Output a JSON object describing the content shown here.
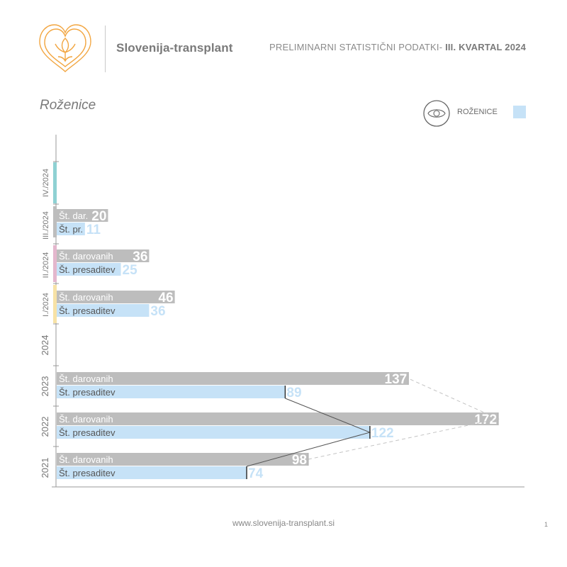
{
  "header": {
    "brand": "Slovenija-transplant",
    "report_title_prefix": "PRELIMINARNI STATISTIČNI PODATKI- ",
    "report_title_period": "III. KVARTAL 2024"
  },
  "section_title": "Roženice",
  "legend": {
    "label": "ROŽENICE",
    "swatch_color": "#c6e2f7",
    "icon": "eye-icon"
  },
  "footer": {
    "url": "www.slovenija-transplant.si",
    "page_number": "1"
  },
  "colors": {
    "donated": "#bdbdbd",
    "transplanted": "#c6e2f7",
    "transplanted_text": "#c6e2f7",
    "q4": "#8fd1d3",
    "q3": "#bdbdbd",
    "q2": "#e4b7cd",
    "q1": "#f7e2a6",
    "logo": "#f2a641"
  },
  "chart_data": {
    "type": "bar",
    "orientation": "horizontal",
    "categories": [
      "IV./2024",
      "III./2024",
      "II./2024",
      "I./2024",
      "2024",
      "2023",
      "2022",
      "2021"
    ],
    "series": [
      {
        "name": "Št. darovanih",
        "short_name": "Št. dar.",
        "values": [
          null,
          20,
          36,
          46,
          null,
          137,
          172,
          98
        ]
      },
      {
        "name": "Št. presaditev",
        "short_name": "Št. pr.",
        "values": [
          null,
          11,
          25,
          36,
          null,
          89,
          122,
          74
        ]
      }
    ],
    "trend_lines": {
      "donated": {
        "style": "dashed",
        "categories": [
          "2021",
          "2022",
          "2023"
        ]
      },
      "transplanted": {
        "style": "solid",
        "categories": [
          "2021",
          "2022",
          "2023"
        ]
      }
    },
    "xlim": [
      0,
      180
    ]
  }
}
